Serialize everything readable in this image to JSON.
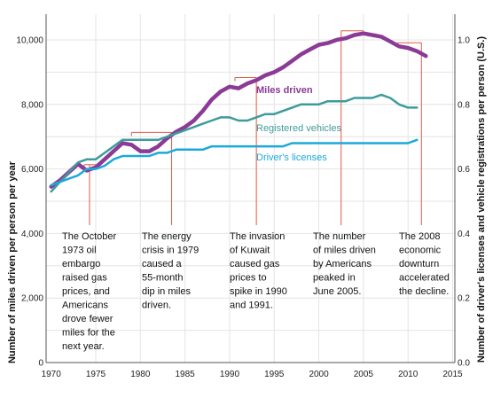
{
  "chart_data": {
    "type": "line",
    "xlabel": "",
    "ylabel": "Number of miles driven per person per year",
    "y2label": "Number of driver's licenses and vehicle registrations per person (U.S.)",
    "xlim": [
      1969,
      2015
    ],
    "ylim": [
      0,
      10500
    ],
    "y2lim": [
      0,
      1.05
    ],
    "x_ticks": [
      1970,
      1975,
      1980,
      1985,
      1990,
      1995,
      2000,
      2005,
      2010,
      2015
    ],
    "y_ticks": [
      0,
      2000,
      4000,
      6000,
      8000,
      10000
    ],
    "y_tick_labels": [
      "0",
      "2,000",
      "4,000",
      "6,000",
      "8,000",
      "10,000"
    ],
    "y2_ticks": [
      0,
      0.2,
      0.4,
      0.6,
      0.8,
      1.0
    ],
    "y2_tick_labels": [
      "0.0",
      "0.2",
      "0.4",
      "0.6",
      "0.8",
      "1.0"
    ],
    "grid": true,
    "legend": "inline labels",
    "series": [
      {
        "name": "Miles driven",
        "axis": "left",
        "color": "#8b3a96",
        "points": [
          [
            1970,
            5450
          ],
          [
            1971,
            5650
          ],
          [
            1972,
            5900
          ],
          [
            1973,
            6150
          ],
          [
            1974,
            5950
          ],
          [
            1975,
            6050
          ],
          [
            1976,
            6300
          ],
          [
            1977,
            6550
          ],
          [
            1978,
            6800
          ],
          [
            1979,
            6750
          ],
          [
            1980,
            6550
          ],
          [
            1981,
            6550
          ],
          [
            1982,
            6700
          ],
          [
            1983,
            6950
          ],
          [
            1984,
            7150
          ],
          [
            1985,
            7300
          ],
          [
            1986,
            7500
          ],
          [
            1987,
            7800
          ],
          [
            1988,
            8150
          ],
          [
            1989,
            8400
          ],
          [
            1990,
            8550
          ],
          [
            1991,
            8500
          ],
          [
            1992,
            8650
          ],
          [
            1993,
            8750
          ],
          [
            1994,
            8900
          ],
          [
            1995,
            9000
          ],
          [
            1996,
            9150
          ],
          [
            1997,
            9350
          ],
          [
            1998,
            9550
          ],
          [
            1999,
            9700
          ],
          [
            2000,
            9850
          ],
          [
            2001,
            9900
          ],
          [
            2002,
            10000
          ],
          [
            2003,
            10050
          ],
          [
            2004,
            10150
          ],
          [
            2005,
            10200
          ],
          [
            2006,
            10150
          ],
          [
            2007,
            10100
          ],
          [
            2008,
            9950
          ],
          [
            2009,
            9800
          ],
          [
            2010,
            9750
          ],
          [
            2011,
            9650
          ],
          [
            2012,
            9500
          ]
        ]
      },
      {
        "name": "Registered vehicles",
        "axis": "right",
        "color": "#3d9c9a",
        "points": [
          [
            1970,
            0.53
          ],
          [
            1971,
            0.56
          ],
          [
            1972,
            0.59
          ],
          [
            1973,
            0.62
          ],
          [
            1974,
            0.63
          ],
          [
            1975,
            0.63
          ],
          [
            1976,
            0.65
          ],
          [
            1977,
            0.67
          ],
          [
            1978,
            0.69
          ],
          [
            1979,
            0.69
          ],
          [
            1980,
            0.69
          ],
          [
            1981,
            0.69
          ],
          [
            1982,
            0.69
          ],
          [
            1983,
            0.7
          ],
          [
            1984,
            0.71
          ],
          [
            1985,
            0.72
          ],
          [
            1986,
            0.73
          ],
          [
            1987,
            0.74
          ],
          [
            1988,
            0.75
          ],
          [
            1989,
            0.76
          ],
          [
            1990,
            0.76
          ],
          [
            1991,
            0.75
          ],
          [
            1992,
            0.75
          ],
          [
            1993,
            0.76
          ],
          [
            1994,
            0.77
          ],
          [
            1995,
            0.77
          ],
          [
            1996,
            0.78
          ],
          [
            1997,
            0.79
          ],
          [
            1998,
            0.8
          ],
          [
            1999,
            0.8
          ],
          [
            2000,
            0.8
          ],
          [
            2001,
            0.81
          ],
          [
            2002,
            0.81
          ],
          [
            2003,
            0.81
          ],
          [
            2004,
            0.82
          ],
          [
            2005,
            0.82
          ],
          [
            2006,
            0.82
          ],
          [
            2007,
            0.83
          ],
          [
            2008,
            0.82
          ],
          [
            2009,
            0.8
          ],
          [
            2010,
            0.79
          ],
          [
            2011,
            0.79
          ]
        ]
      },
      {
        "name": "Driver's licenses",
        "axis": "right",
        "color": "#1ca9d9",
        "points": [
          [
            1970,
            0.55
          ],
          [
            1971,
            0.56
          ],
          [
            1972,
            0.57
          ],
          [
            1973,
            0.58
          ],
          [
            1974,
            0.6
          ],
          [
            1975,
            0.6
          ],
          [
            1976,
            0.61
          ],
          [
            1977,
            0.63
          ],
          [
            1978,
            0.64
          ],
          [
            1979,
            0.64
          ],
          [
            1980,
            0.64
          ],
          [
            1981,
            0.64
          ],
          [
            1982,
            0.65
          ],
          [
            1983,
            0.65
          ],
          [
            1984,
            0.66
          ],
          [
            1985,
            0.66
          ],
          [
            1986,
            0.66
          ],
          [
            1987,
            0.66
          ],
          [
            1988,
            0.67
          ],
          [
            1989,
            0.67
          ],
          [
            1990,
            0.67
          ],
          [
            1991,
            0.67
          ],
          [
            1992,
            0.67
          ],
          [
            1993,
            0.67
          ],
          [
            1994,
            0.67
          ],
          [
            1995,
            0.67
          ],
          [
            1996,
            0.67
          ],
          [
            1997,
            0.68
          ],
          [
            1998,
            0.68
          ],
          [
            1999,
            0.68
          ],
          [
            2000,
            0.68
          ],
          [
            2001,
            0.68
          ],
          [
            2002,
            0.68
          ],
          [
            2003,
            0.68
          ],
          [
            2004,
            0.68
          ],
          [
            2005,
            0.68
          ],
          [
            2006,
            0.68
          ],
          [
            2007,
            0.68
          ],
          [
            2008,
            0.68
          ],
          [
            2009,
            0.68
          ],
          [
            2010,
            0.68
          ],
          [
            2011,
            0.69
          ]
        ]
      }
    ],
    "annotations": [
      {
        "name": "annotation-1973-oil-embargo",
        "bracket_x": [
          1973.7,
          1975
        ],
        "pointer_x": 1974.3,
        "lines": [
          "The October",
          "1973 oil",
          "embargo",
          "raised gas",
          "prices, and",
          "Americans",
          "drove fewer",
          "miles for the",
          "next year."
        ]
      },
      {
        "name": "annotation-1979-energy-crisis",
        "bracket_x": [
          1979,
          1983.5
        ],
        "pointer_x": 1983.5,
        "lines": [
          "The energy",
          "crisis in 1979",
          "caused a",
          "55-month",
          "dip in miles",
          "driven."
        ]
      },
      {
        "name": "annotation-kuwait-invasion",
        "bracket_x": [
          1990.6,
          1993
        ],
        "pointer_x": 1993,
        "lines": [
          "The invasion",
          "of Kuwait",
          "caused gas",
          "prices to",
          "spike in 1990",
          "and 1991."
        ]
      },
      {
        "name": "annotation-peak-2005",
        "bracket_x": [
          2002.5,
          2005
        ],
        "pointer_x": 2002.5,
        "lines": [
          "The number",
          "of miles driven",
          "by Americans",
          "peaked in",
          "June 2005."
        ]
      },
      {
        "name": "annotation-2008-downturn",
        "bracket_x": [
          2008.8,
          2011.5
        ],
        "pointer_x": 2011.5,
        "lines": [
          "The 2008",
          "economic",
          "downturn",
          "accelerated",
          "the decline."
        ]
      }
    ]
  }
}
